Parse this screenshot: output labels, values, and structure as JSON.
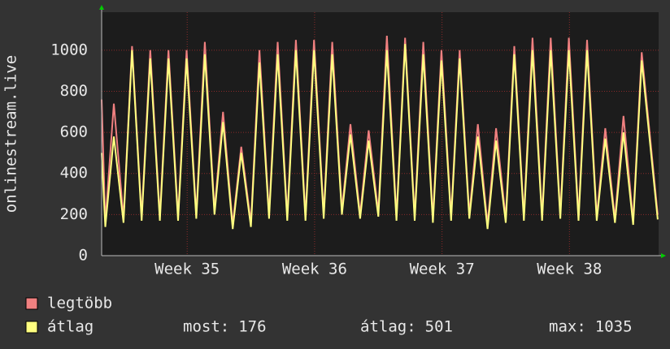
{
  "chart_data": {
    "type": "line",
    "y_label": "onlinestream.live",
    "x": [
      0,
      0.2,
      0.67,
      1.2,
      1.67,
      2.2,
      2.67,
      3.2,
      3.67,
      4.2,
      4.67,
      5.2,
      5.67,
      6.2,
      6.67,
      7.2,
      7.67,
      8.2,
      8.67,
      9.2,
      9.67,
      10.2,
      10.67,
      11.2,
      11.67,
      12.2,
      12.67,
      13.2,
      13.67,
      14.2,
      14.67,
      15.2,
      15.67,
      16.2,
      16.67,
      17.2,
      17.67,
      18.2,
      18.67,
      19.2,
      19.67,
      20.2,
      20.67,
      21.2,
      21.67,
      22.2,
      22.67,
      23.2,
      23.67,
      24.2,
      24.67,
      25.2,
      25.67,
      26.2,
      26.67,
      27.2,
      27.67,
      28.2,
      28.67,
      29.2,
      29.67,
      30.55
    ],
    "series": [
      {
        "name": "legtöbb",
        "color": "#f08080",
        "values": [
          760,
          160,
          740,
          180,
          1020,
          190,
          1000,
          190,
          1000,
          190,
          1000,
          200,
          1040,
          220,
          700,
          150,
          530,
          160,
          1000,
          200,
          1040,
          190,
          1050,
          190,
          1050,
          200,
          1040,
          220,
          640,
          200,
          610,
          210,
          1070,
          190,
          1060,
          190,
          1040,
          180,
          1000,
          190,
          1000,
          200,
          640,
          150,
          620,
          180,
          1020,
          190,
          1060,
          190,
          1060,
          200,
          1060,
          190,
          1050,
          190,
          620,
          180,
          680,
          170,
          990,
          200
        ]
      },
      {
        "name": "átlag",
        "color": "#ffff80",
        "values": [
          500,
          140,
          580,
          160,
          1000,
          170,
          960,
          170,
          960,
          170,
          960,
          180,
          980,
          200,
          650,
          130,
          500,
          140,
          940,
          180,
          980,
          170,
          1000,
          170,
          1000,
          180,
          980,
          200,
          590,
          180,
          560,
          190,
          1000,
          170,
          1030,
          170,
          980,
          160,
          950,
          170,
          960,
          180,
          580,
          130,
          560,
          160,
          980,
          170,
          1000,
          170,
          1000,
          180,
          1000,
          170,
          1000,
          170,
          570,
          160,
          600,
          150,
          950,
          176
        ]
      }
    ],
    "xlim": [
      0,
      30.6
    ],
    "xticks": [
      {
        "value": 4.7,
        "label": "Week 35"
      },
      {
        "value": 11.7,
        "label": "Week 36"
      },
      {
        "value": 18.7,
        "label": "Week 37"
      },
      {
        "value": 25.7,
        "label": "Week 38"
      }
    ],
    "ylim": [
      0,
      1185
    ],
    "yticks": [
      0,
      200,
      400,
      600,
      800,
      1000
    ],
    "grid": true,
    "stats": [
      {
        "label": "most:",
        "value": 176
      },
      {
        "label": "átlag:",
        "value": 501
      },
      {
        "label": "max:",
        "value": 1035
      }
    ]
  }
}
